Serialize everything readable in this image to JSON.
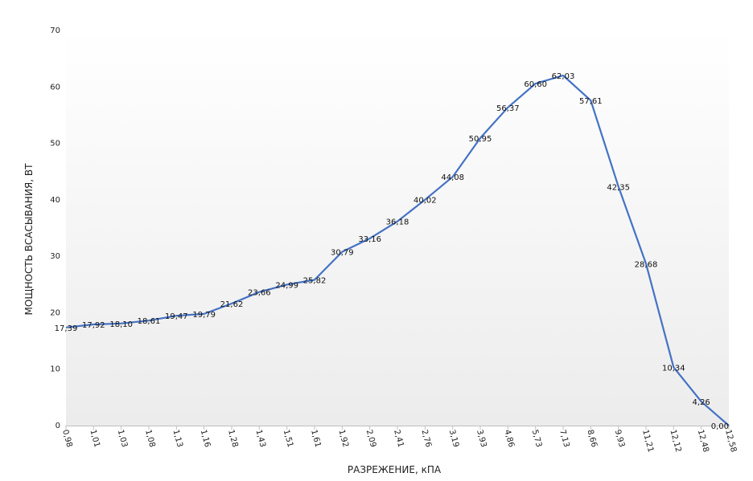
{
  "chart_data": {
    "type": "line",
    "xlabel": "РАЗРЕЖЕНИЕ, кПА",
    "ylabel": "МОЩНОСТЬ ВСАСЫВАНИЯ, ВТ",
    "ylim": [
      0,
      70
    ],
    "yticks": [
      "0",
      "10",
      "20",
      "30",
      "40",
      "50",
      "60",
      "70"
    ],
    "grid": false,
    "line_color": "#4472C4",
    "categories": [
      "0,98",
      "1,01",
      "1,03",
      "1,08",
      "1,13",
      "1,16",
      "1,28",
      "1,43",
      "1,51",
      "1,61",
      "1,92",
      "2,09",
      "2,41",
      "2,76",
      "3,19",
      "3,93",
      "4,86",
      "5,73",
      "7,13",
      "8,66",
      "9,93",
      "11,21",
      "12,12",
      "12,48",
      "12,58"
    ],
    "values": [
      17.39,
      17.92,
      18.1,
      18.61,
      19.47,
      19.79,
      21.62,
      23.66,
      24.99,
      25.82,
      30.79,
      33.16,
      36.18,
      40.02,
      44.08,
      50.95,
      56.37,
      60.6,
      62.03,
      57.61,
      42.35,
      28.68,
      10.34,
      4.26,
      0.0
    ],
    "data_labels": [
      "17,39",
      "17,92",
      "18,10",
      "18,61",
      "19,47",
      "19,79",
      "21,62",
      "23,66",
      "24,99",
      "25,82",
      "30,79",
      "33,16",
      "36,18",
      "40,02",
      "44,08",
      "50,95",
      "56,37",
      "60,60",
      "62,03",
      "57,61",
      "42,35",
      "28,68",
      "10,34",
      "4,26",
      "0,00"
    ]
  }
}
